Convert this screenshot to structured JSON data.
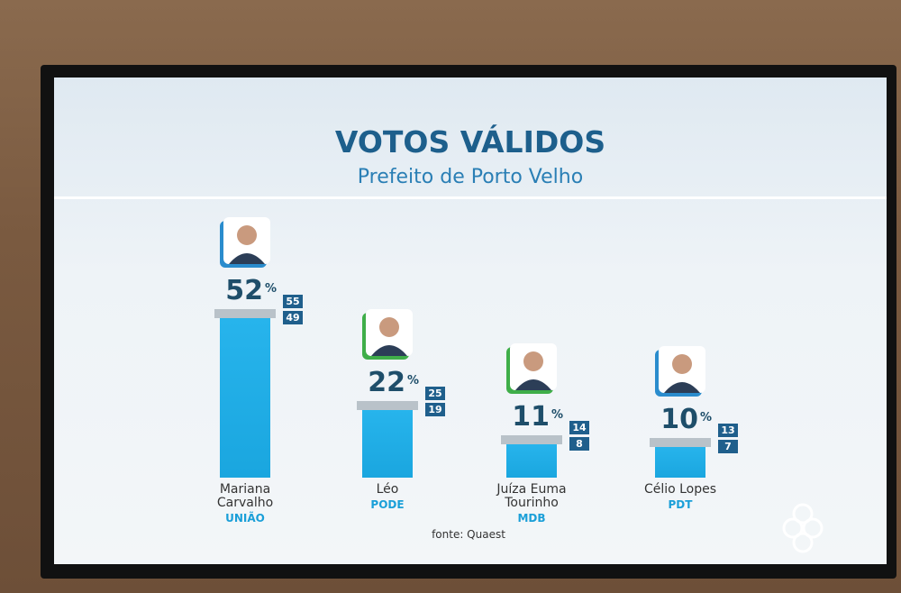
{
  "chart_data": {
    "type": "bar",
    "title": "VOTOS VÁLIDOS",
    "subtitle": "Prefeito de Porto Velho",
    "categories": [
      "Mariana Carvalho",
      "Léo",
      "Juíza Euma Tourinho",
      "Célio Lopes"
    ],
    "parties": [
      "UNIÃO",
      "PODE",
      "MDB",
      "PDT"
    ],
    "values": [
      52,
      22,
      11,
      10
    ],
    "upper": [
      55,
      25,
      14,
      13
    ],
    "lower": [
      49,
      19,
      8,
      7
    ],
    "unit": "%",
    "color": "#1aa6df",
    "source": "fonte: Quaest"
  }
}
